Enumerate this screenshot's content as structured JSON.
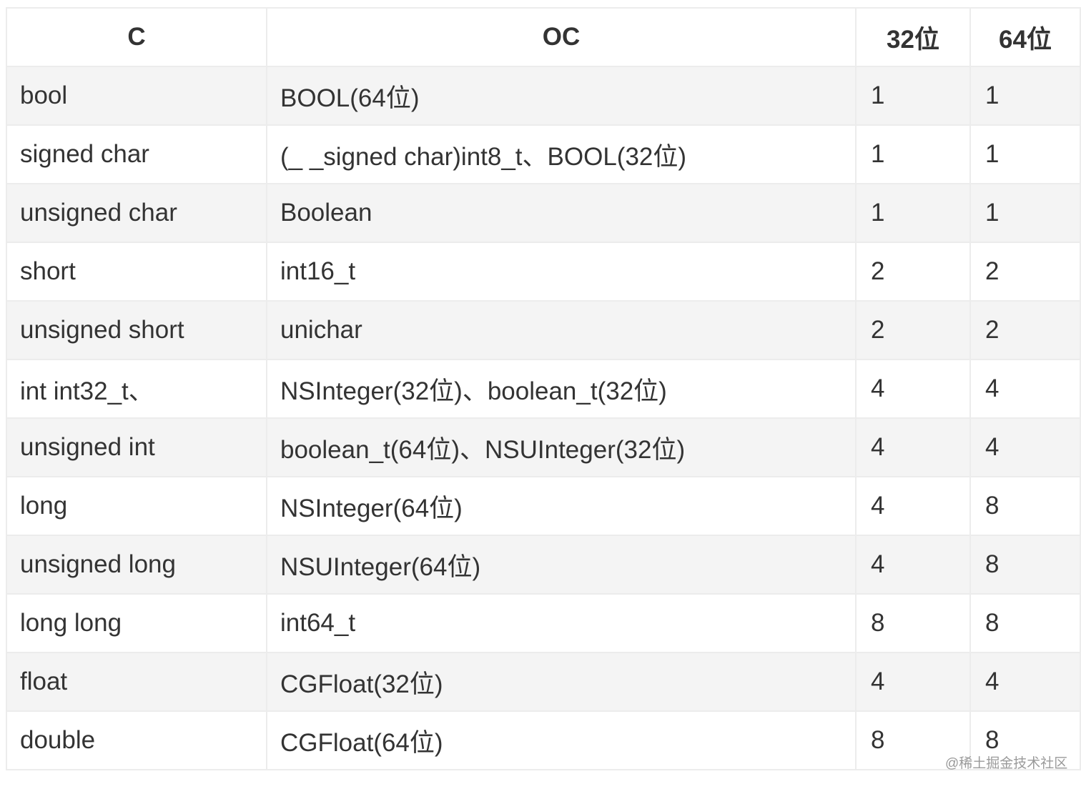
{
  "table": {
    "headers": [
      "C",
      "OC",
      "32位",
      "64位"
    ],
    "rows": [
      [
        "bool",
        "BOOL(64位)",
        "1",
        "1"
      ],
      [
        "signed char",
        "(_ _signed char)int8_t、BOOL(32位)",
        "1",
        "1"
      ],
      [
        "unsigned char",
        "Boolean",
        "1",
        "1"
      ],
      [
        "short",
        "int16_t",
        "2",
        "2"
      ],
      [
        "unsigned short",
        "unichar",
        "2",
        "2"
      ],
      [
        "int int32_t、",
        "NSInteger(32位)、boolean_t(32位)",
        "4",
        "4"
      ],
      [
        "unsigned int",
        "boolean_t(64位)、NSUInteger(32位)",
        "4",
        "4"
      ],
      [
        "long",
        "NSInteger(64位)",
        "4",
        "8"
      ],
      [
        "unsigned long",
        "NSUInteger(64位)",
        "4",
        "8"
      ],
      [
        "long long",
        "int64_t",
        "8",
        "8"
      ],
      [
        "float",
        "CGFloat(32位)",
        "4",
        "4"
      ],
      [
        "double",
        "CGFloat(64位)",
        "8",
        "8"
      ]
    ]
  },
  "watermark": "@稀土掘金技术社区"
}
